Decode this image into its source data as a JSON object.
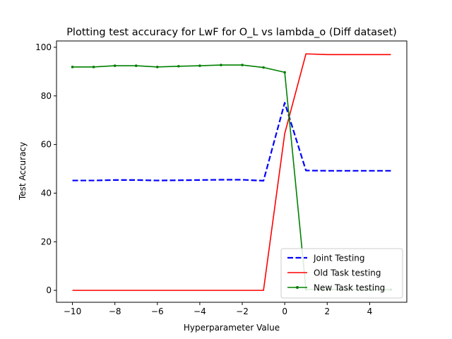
{
  "chart_data": {
    "type": "line",
    "title": "Plotting test accuracy for LwF for O_L vs lambda_o (Diff dataset)",
    "xlabel": "Hyperparameter Value",
    "ylabel": "Test Accuracy",
    "xlim": [
      -10.75,
      5.75
    ],
    "ylim": [
      -4.9,
      102.6
    ],
    "xticks": [
      -10,
      -8,
      -6,
      -4,
      -2,
      0,
      2,
      4
    ],
    "xtick_labels": [
      "−10",
      "−8",
      "−6",
      "−4",
      "−2",
      "0",
      "2",
      "4"
    ],
    "yticks": [
      0,
      20,
      40,
      60,
      80,
      100
    ],
    "ytick_labels": [
      "0",
      "20",
      "40",
      "60",
      "80",
      "100"
    ],
    "grid": false,
    "legend": "lower-right",
    "x": [
      -10,
      -9,
      -8,
      -7,
      -6,
      -5,
      -4,
      -3,
      -2,
      -1,
      0,
      1,
      2,
      3,
      4,
      5
    ],
    "series": [
      {
        "name": "Joint Testing",
        "color": "#0000ff",
        "style": "dashed",
        "marker": "none",
        "values": [
          45.2,
          45.2,
          45.4,
          45.4,
          45.2,
          45.3,
          45.4,
          45.5,
          45.5,
          45.1,
          77.2,
          49.3,
          49.2,
          49.2,
          49.2,
          49.2
        ]
      },
      {
        "name": "Old Task testing",
        "color": "#ff0000",
        "style": "solid",
        "marker": "none",
        "values": [
          0,
          0,
          0,
          0,
          0,
          0,
          0,
          0,
          0,
          0,
          64.5,
          97.3,
          97.0,
          97.0,
          97.0,
          97.0
        ]
      },
      {
        "name": "New Task testing",
        "color": "#008000",
        "style": "solid",
        "marker": "dot",
        "values": [
          91.9,
          91.9,
          92.4,
          92.4,
          91.9,
          92.2,
          92.4,
          92.7,
          92.7,
          91.7,
          89.7,
          0.4,
          0.3,
          0.3,
          0.3,
          0.3
        ]
      }
    ]
  }
}
